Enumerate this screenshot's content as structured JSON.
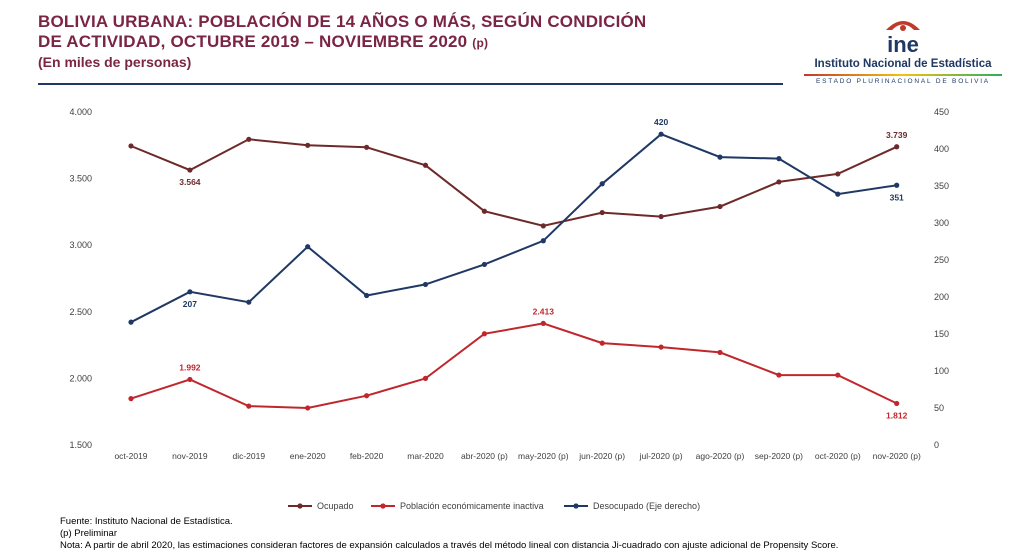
{
  "header": {
    "title_line1": "BOLIVIA URBANA: POBLACIÓN DE 14 AÑOS O MÁS, SEGÚN CONDICIÓN",
    "title_line2": "DE ACTIVIDAD, OCTUBRE 2019 – NOVIEMBRE 2020",
    "title_prelim": "(p)",
    "subtitle": "(En miles de personas)"
  },
  "logo": {
    "mark": "ine",
    "name": "Instituto Nacional de Estadística",
    "tagline": "ESTADO PLURINACIONAL DE BOLIVIA",
    "colors": {
      "red": "#c0392b",
      "blue": "#1f3864",
      "yellow": "#f1c40f",
      "green": "#27ae60"
    }
  },
  "chart_data": {
    "type": "line",
    "categories": [
      "oct-2019",
      "nov-2019",
      "dic-2019",
      "ene-2020",
      "feb-2020",
      "mar-2020",
      "abr-2020 (p)",
      "may-2020 (p)",
      "jun-2020 (p)",
      "jul-2020 (p)",
      "ago-2020 (p)",
      "sep-2020 (p)",
      "oct-2020 (p)",
      "nov-2020 (p)"
    ],
    "y_left": {
      "min": 1500,
      "max": 4000,
      "ticks": [
        "1.500",
        "2.000",
        "2.500",
        "3.000",
        "3.500",
        "4.000"
      ],
      "tick_values": [
        1500,
        2000,
        2500,
        3000,
        3500,
        4000
      ]
    },
    "y_right": {
      "min": 0,
      "max": 450,
      "ticks": [
        "0",
        "50",
        "100",
        "150",
        "200",
        "250",
        "300",
        "350",
        "400",
        "450"
      ],
      "tick_values": [
        0,
        50,
        100,
        150,
        200,
        250,
        300,
        350,
        400,
        450
      ]
    },
    "series": [
      {
        "name": "Ocupado",
        "axis": "left",
        "color": "#6e2a2a",
        "values": [
          3745,
          3564,
          3795,
          3750,
          3735,
          3600,
          3255,
          3145,
          3245,
          3215,
          3290,
          3475,
          3535,
          3739
        ],
        "labels": [
          {
            "index": 1,
            "text": "3.564",
            "pos": "below"
          },
          {
            "index": 13,
            "text": "3.739",
            "pos": "above"
          }
        ]
      },
      {
        "name": "Población económicamente inactiva",
        "axis": "left",
        "color": "#c0272d",
        "values": [
          1848,
          1992,
          1792,
          1778,
          1870,
          2000,
          2335,
          2413,
          2265,
          2235,
          2195,
          2025,
          2025,
          1812
        ],
        "labels": [
          {
            "index": 1,
            "text": "1.992",
            "pos": "above"
          },
          {
            "index": 7,
            "text": "2.413",
            "pos": "above"
          },
          {
            "index": 13,
            "text": "1.812",
            "pos": "below"
          }
        ]
      },
      {
        "name": "Desocupado (Eje derecho)",
        "axis": "right",
        "color": "#1f3864",
        "values": [
          166,
          207,
          193,
          268,
          202,
          217,
          244,
          276,
          353,
          420,
          389,
          387,
          339,
          351
        ],
        "labels": [
          {
            "index": 1,
            "text": "207",
            "pos": "below"
          },
          {
            "index": 9,
            "text": "420",
            "pos": "above"
          },
          {
            "index": 13,
            "text": "351",
            "pos": "below"
          }
        ]
      }
    ]
  },
  "footer": {
    "source": "Fuente: Instituto Nacional de Estadística.",
    "prelim": "(p) Preliminar",
    "note": "Nota: A partir de abril 2020, las estimaciones consideran factores de expansión calculados a través del método lineal con distancia Ji-cuadrado con ajuste adicional de Propensity Score."
  }
}
